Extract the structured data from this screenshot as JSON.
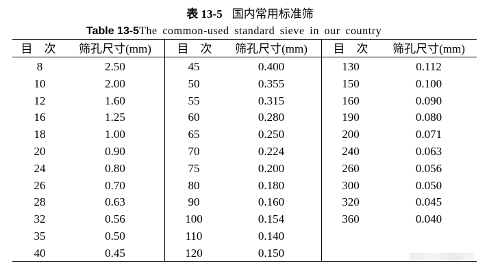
{
  "title": {
    "cn_number": "表 13-5",
    "cn_text": "国内常用标准筛",
    "en_number": "Table 13-5",
    "en_text": "The common-used standard sieve in our country"
  },
  "headers": {
    "mesh": "目　次",
    "aperture": "筛孔尺寸(mm)"
  },
  "table": {
    "columns": [
      {
        "rows": [
          {
            "mesh": "8",
            "aperture": "2.50"
          },
          {
            "mesh": "10",
            "aperture": "2.00"
          },
          {
            "mesh": "12",
            "aperture": "1.60"
          },
          {
            "mesh": "16",
            "aperture": "1.25"
          },
          {
            "mesh": "18",
            "aperture": "1.00"
          },
          {
            "mesh": "20",
            "aperture": "0.90"
          },
          {
            "mesh": "24",
            "aperture": "0.80"
          },
          {
            "mesh": "26",
            "aperture": "0.70"
          },
          {
            "mesh": "28",
            "aperture": "0.63"
          },
          {
            "mesh": "32",
            "aperture": "0.56"
          },
          {
            "mesh": "35",
            "aperture": "0.50"
          },
          {
            "mesh": "40",
            "aperture": "0.45"
          }
        ]
      },
      {
        "rows": [
          {
            "mesh": "45",
            "aperture": "0.400"
          },
          {
            "mesh": "50",
            "aperture": "0.355"
          },
          {
            "mesh": "55",
            "aperture": "0.315"
          },
          {
            "mesh": "60",
            "aperture": "0.280"
          },
          {
            "mesh": "65",
            "aperture": "0.250"
          },
          {
            "mesh": "70",
            "aperture": "0.224"
          },
          {
            "mesh": "75",
            "aperture": "0.200"
          },
          {
            "mesh": "80",
            "aperture": "0.180"
          },
          {
            "mesh": "90",
            "aperture": "0.160"
          },
          {
            "mesh": "100",
            "aperture": "0.154"
          },
          {
            "mesh": "110",
            "aperture": "0.140"
          },
          {
            "mesh": "120",
            "aperture": "0.150"
          }
        ]
      },
      {
        "rows": [
          {
            "mesh": "130",
            "aperture": "0.112"
          },
          {
            "mesh": "150",
            "aperture": "0.100"
          },
          {
            "mesh": "160",
            "aperture": "0.090"
          },
          {
            "mesh": "190",
            "aperture": "0.080"
          },
          {
            "mesh": "200",
            "aperture": "0.071"
          },
          {
            "mesh": "240",
            "aperture": "0.063"
          },
          {
            "mesh": "260",
            "aperture": "0.056"
          },
          {
            "mesh": "300",
            "aperture": "0.050"
          },
          {
            "mesh": "320",
            "aperture": "0.045"
          },
          {
            "mesh": "360",
            "aperture": "0.040"
          }
        ]
      }
    ]
  }
}
